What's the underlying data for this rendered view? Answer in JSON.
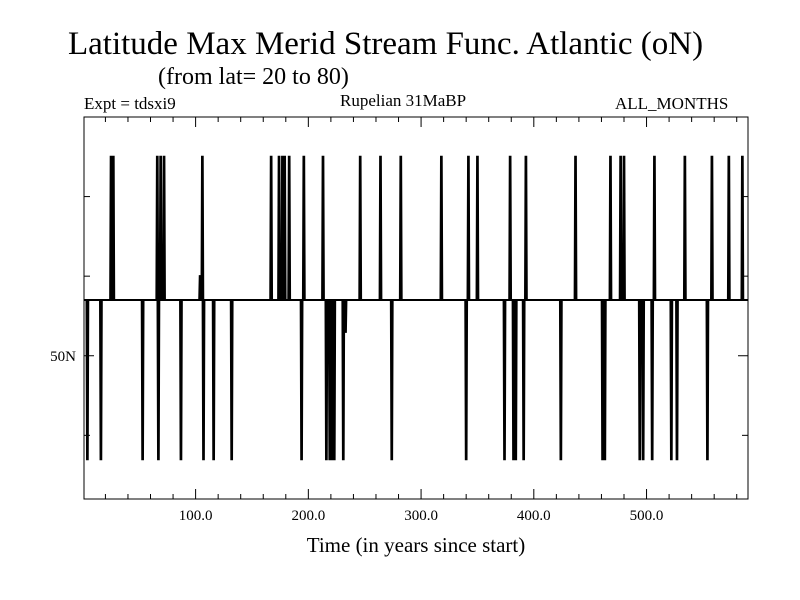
{
  "chart_data": {
    "type": "line",
    "title": "Latitude Max Merid Stream Func. Atlantic (oN)",
    "subtitle": "(from lat= 20 to 80)",
    "left_label": "Expt = tdsxi9",
    "center_label": "Rupelian  31MaBP",
    "right_label": "ALL_MONTHS",
    "xlabel": "Time (in years since start)",
    "ylabel": "",
    "xlim": [
      1,
      590
    ],
    "ylim": [
      32,
      80
    ],
    "x_ticks": [
      {
        "value": 100,
        "label": "100.0"
      },
      {
        "value": 200,
        "label": "200.0"
      },
      {
        "value": 300,
        "label": "300.0"
      },
      {
        "value": 400,
        "label": "400.0"
      },
      {
        "value": 500,
        "label": "500.0"
      }
    ],
    "y_ticks": [
      {
        "value": 50,
        "label": "50N"
      }
    ],
    "y_minor_ticks": [
      40,
      60,
      70
    ],
    "baseline": 57,
    "high_value": 75,
    "low_value": 37,
    "series": [
      {
        "name": "latitude_max",
        "events": [
          {
            "t": 4,
            "v": 37
          },
          {
            "t": 16,
            "v": 37
          },
          {
            "t": 25,
            "v": 75
          },
          {
            "t": 27,
            "v": 75
          },
          {
            "t": 53,
            "v": 37
          },
          {
            "t": 66,
            "v": 75
          },
          {
            "t": 67,
            "v": 37
          },
          {
            "t": 69,
            "v": 75
          },
          {
            "t": 71,
            "v": 60
          },
          {
            "t": 72,
            "v": 75
          },
          {
            "t": 87,
            "v": 37
          },
          {
            "t": 104,
            "v": 60
          },
          {
            "t": 106,
            "v": 75
          },
          {
            "t": 107,
            "v": 37
          },
          {
            "t": 116,
            "v": 37
          },
          {
            "t": 132,
            "v": 37
          },
          {
            "t": 167,
            "v": 75
          },
          {
            "t": 174,
            "v": 75
          },
          {
            "t": 177,
            "v": 75
          },
          {
            "t": 179,
            "v": 75
          },
          {
            "t": 183,
            "v": 75
          },
          {
            "t": 194,
            "v": 37
          },
          {
            "t": 196,
            "v": 75
          },
          {
            "t": 213,
            "v": 75
          },
          {
            "t": 216,
            "v": 37
          },
          {
            "t": 219,
            "v": 37
          },
          {
            "t": 221,
            "v": 37
          },
          {
            "t": 223,
            "v": 37
          },
          {
            "t": 231,
            "v": 37
          },
          {
            "t": 233,
            "v": 53
          },
          {
            "t": 246,
            "v": 75
          },
          {
            "t": 264,
            "v": 75
          },
          {
            "t": 274,
            "v": 37
          },
          {
            "t": 282,
            "v": 75
          },
          {
            "t": 318,
            "v": 75
          },
          {
            "t": 340,
            "v": 37
          },
          {
            "t": 342,
            "v": 75
          },
          {
            "t": 350,
            "v": 75
          },
          {
            "t": 374,
            "v": 37
          },
          {
            "t": 379,
            "v": 75
          },
          {
            "t": 382,
            "v": 37
          },
          {
            "t": 384,
            "v": 37
          },
          {
            "t": 391,
            "v": 37
          },
          {
            "t": 393,
            "v": 75
          },
          {
            "t": 424,
            "v": 37
          },
          {
            "t": 437,
            "v": 75
          },
          {
            "t": 461,
            "v": 37
          },
          {
            "t": 463,
            "v": 37
          },
          {
            "t": 468,
            "v": 75
          },
          {
            "t": 477,
            "v": 75
          },
          {
            "t": 480,
            "v": 75
          },
          {
            "t": 494,
            "v": 37
          },
          {
            "t": 497,
            "v": 37
          },
          {
            "t": 505,
            "v": 37
          },
          {
            "t": 507,
            "v": 75
          },
          {
            "t": 522,
            "v": 37
          },
          {
            "t": 527,
            "v": 37
          },
          {
            "t": 534,
            "v": 75
          },
          {
            "t": 554,
            "v": 37
          },
          {
            "t": 558,
            "v": 75
          },
          {
            "t": 573,
            "v": 75
          },
          {
            "t": 585,
            "v": 75
          }
        ]
      }
    ],
    "grid": false
  },
  "colors": {
    "background": "#ffffff",
    "line": "#000000",
    "axes": "#000000"
  }
}
